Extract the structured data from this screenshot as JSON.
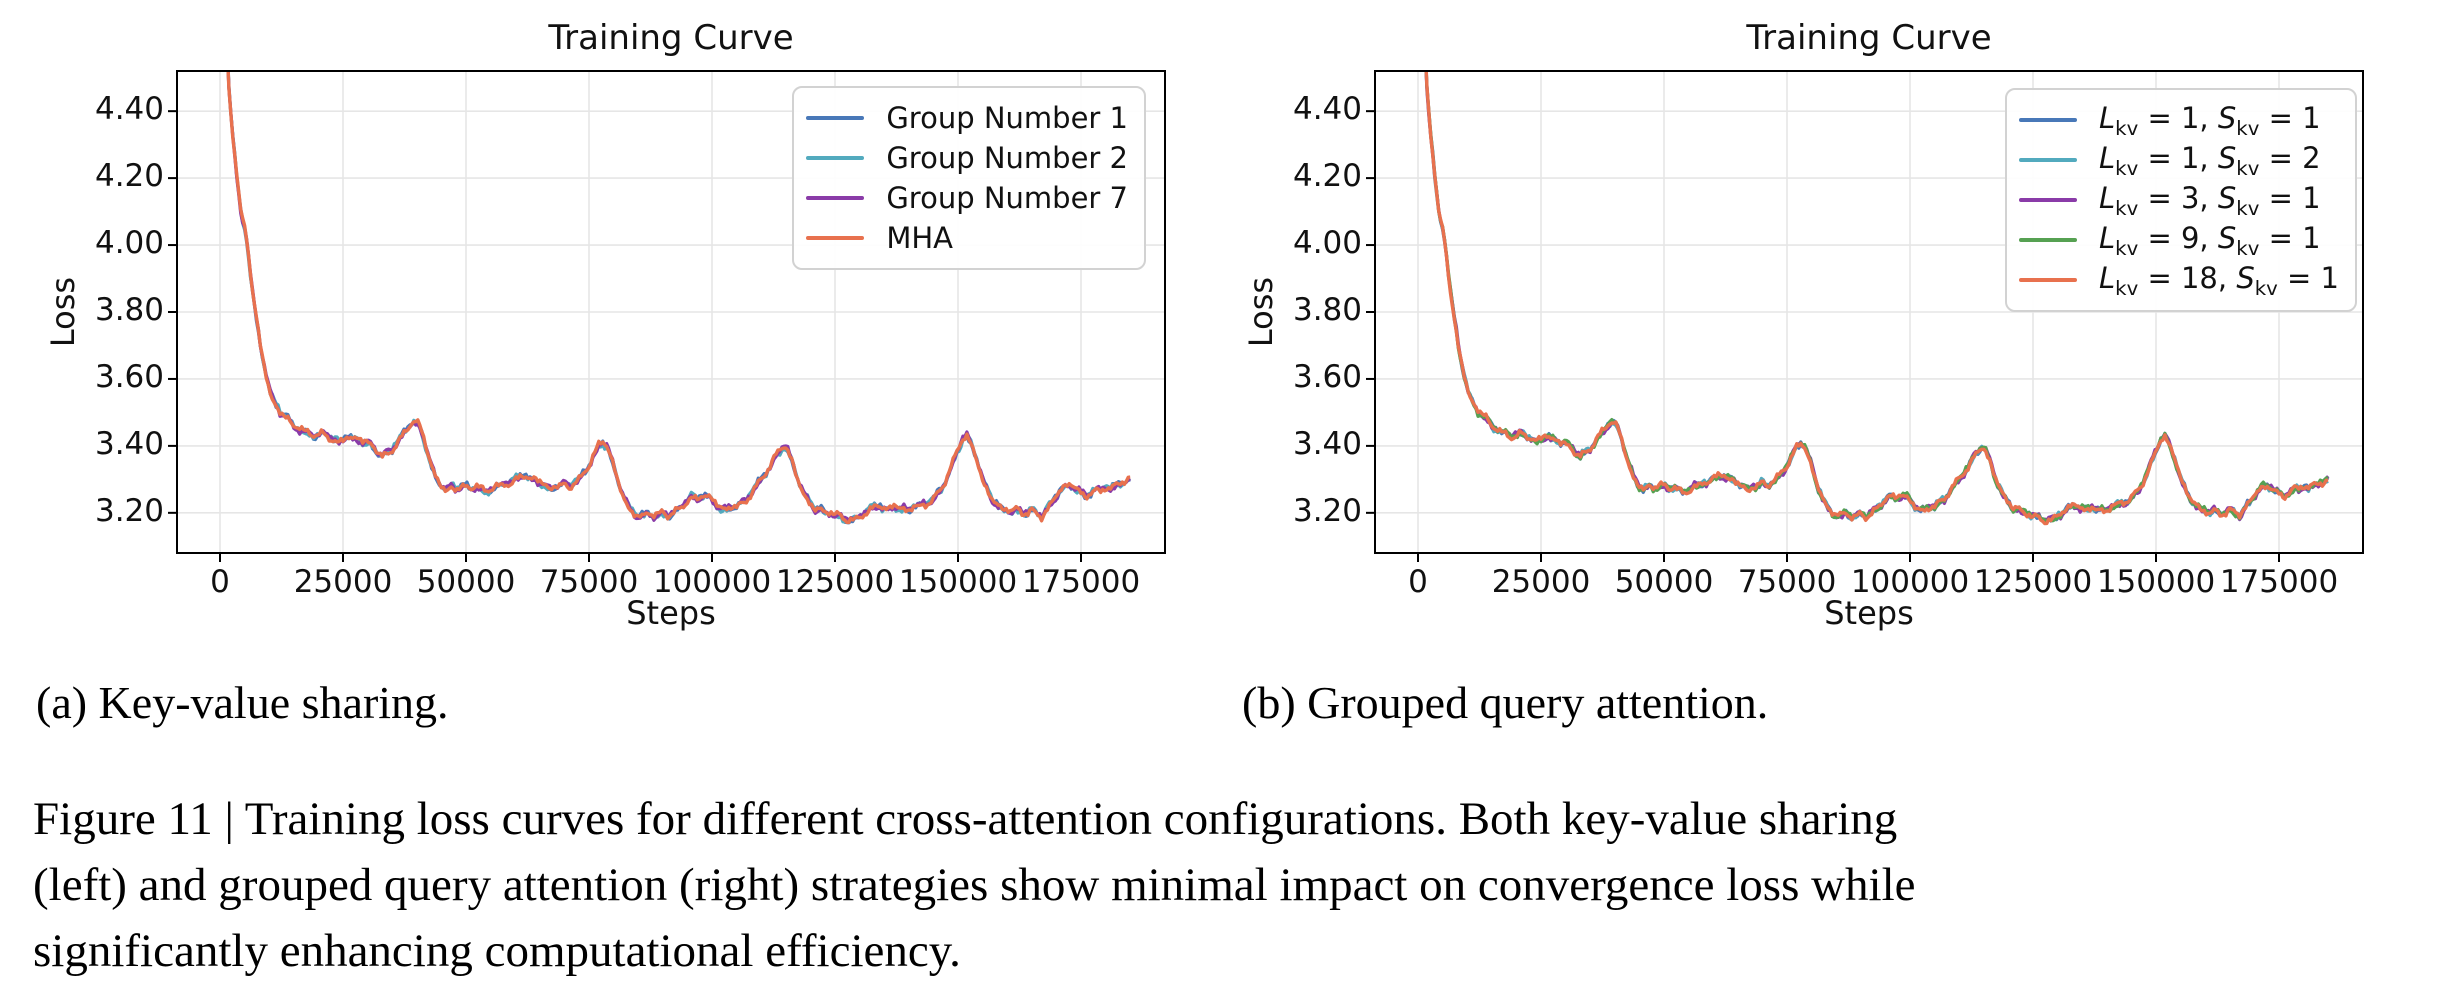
{
  "figure": {
    "subcaption_a": "(a) Key-value sharing.",
    "subcaption_b": "(b) Grouped query attention.",
    "caption_lines": [
      "Figure 11 | Training loss curves for different cross-attention configurations. Both key-value sharing",
      "(left) and grouped query attention (right) strategies show minimal impact on convergence loss while",
      "significantly enhancing computational efficiency."
    ]
  },
  "chart_data": {
    "type": "line",
    "note": "Two side-by-side training-loss line charts. Within each chart all series visually overlap along the same curve (differences are within line width). Shared approximate curve given in points as [step, loss].",
    "points": [
      [
        1000,
        4.82
      ],
      [
        1400,
        4.61
      ],
      [
        1800,
        4.47
      ],
      [
        2200,
        4.4
      ],
      [
        2600,
        4.33
      ],
      [
        3000,
        4.27
      ],
      [
        3400,
        4.21
      ],
      [
        3800,
        4.15
      ],
      [
        4200,
        4.1
      ],
      [
        4600,
        4.07
      ],
      [
        5000,
        4.05
      ],
      [
        5400,
        4.02
      ],
      [
        5800,
        3.97
      ],
      [
        6300,
        3.9
      ],
      [
        6900,
        3.83
      ],
      [
        7500,
        3.77
      ],
      [
        8100,
        3.71
      ],
      [
        8700,
        3.66
      ],
      [
        9300,
        3.62
      ],
      [
        10000,
        3.57
      ],
      [
        10700,
        3.54
      ],
      [
        11500,
        3.52
      ],
      [
        12300,
        3.5
      ],
      [
        13100,
        3.49
      ],
      [
        14000,
        3.48
      ],
      [
        15000,
        3.46
      ],
      [
        16000,
        3.45
      ],
      [
        17000,
        3.44
      ],
      [
        18000,
        3.44
      ],
      [
        19000,
        3.43
      ],
      [
        20000,
        3.43
      ],
      [
        21000,
        3.44
      ],
      [
        22000,
        3.43
      ],
      [
        23000,
        3.42
      ],
      [
        24000,
        3.41
      ],
      [
        25000,
        3.42
      ],
      [
        26000,
        3.43
      ],
      [
        27000,
        3.42
      ],
      [
        28000,
        3.42
      ],
      [
        29000,
        3.41
      ],
      [
        30000,
        3.41
      ],
      [
        31000,
        3.4
      ],
      [
        32000,
        3.38
      ],
      [
        33000,
        3.37
      ],
      [
        34000,
        3.38
      ],
      [
        35000,
        3.39
      ],
      [
        36000,
        3.41
      ],
      [
        37000,
        3.43
      ],
      [
        38000,
        3.45
      ],
      [
        39000,
        3.47
      ],
      [
        40000,
        3.47
      ],
      [
        41000,
        3.44
      ],
      [
        42000,
        3.39
      ],
      [
        43000,
        3.34
      ],
      [
        44000,
        3.3
      ],
      [
        45000,
        3.28
      ],
      [
        46000,
        3.27
      ],
      [
        47000,
        3.28
      ],
      [
        48000,
        3.27
      ],
      [
        49000,
        3.28
      ],
      [
        50000,
        3.28
      ],
      [
        51000,
        3.27
      ],
      [
        52000,
        3.28
      ],
      [
        53000,
        3.27
      ],
      [
        54000,
        3.26
      ],
      [
        55000,
        3.27
      ],
      [
        56000,
        3.28
      ],
      [
        57000,
        3.28
      ],
      [
        58000,
        3.29
      ],
      [
        59000,
        3.29
      ],
      [
        60000,
        3.3
      ],
      [
        61000,
        3.31
      ],
      [
        62000,
        3.31
      ],
      [
        63000,
        3.3
      ],
      [
        64000,
        3.3
      ],
      [
        65000,
        3.29
      ],
      [
        66000,
        3.28
      ],
      [
        67000,
        3.27
      ],
      [
        68000,
        3.28
      ],
      [
        69000,
        3.28
      ],
      [
        70000,
        3.29
      ],
      [
        71000,
        3.28
      ],
      [
        72000,
        3.29
      ],
      [
        73000,
        3.3
      ],
      [
        74000,
        3.32
      ],
      [
        75000,
        3.34
      ],
      [
        76000,
        3.37
      ],
      [
        77000,
        3.4
      ],
      [
        77800,
        3.41
      ],
      [
        78600,
        3.4
      ],
      [
        79400,
        3.37
      ],
      [
        80200,
        3.33
      ],
      [
        81000,
        3.29
      ],
      [
        82000,
        3.25
      ],
      [
        83000,
        3.22
      ],
      [
        84000,
        3.2
      ],
      [
        85000,
        3.19
      ],
      [
        86000,
        3.19
      ],
      [
        87000,
        3.2
      ],
      [
        88000,
        3.19
      ],
      [
        89000,
        3.19
      ],
      [
        90000,
        3.2
      ],
      [
        91000,
        3.19
      ],
      [
        92000,
        3.2
      ],
      [
        93000,
        3.21
      ],
      [
        94000,
        3.22
      ],
      [
        95000,
        3.24
      ],
      [
        96000,
        3.25
      ],
      [
        97000,
        3.24
      ],
      [
        98000,
        3.25
      ],
      [
        99000,
        3.25
      ],
      [
        100000,
        3.24
      ],
      [
        101000,
        3.22
      ],
      [
        102000,
        3.21
      ],
      [
        103000,
        3.21
      ],
      [
        104000,
        3.22
      ],
      [
        105000,
        3.22
      ],
      [
        106000,
        3.23
      ],
      [
        107000,
        3.24
      ],
      [
        108000,
        3.26
      ],
      [
        109000,
        3.28
      ],
      [
        110000,
        3.3
      ],
      [
        111000,
        3.32
      ],
      [
        112000,
        3.34
      ],
      [
        113000,
        3.37
      ],
      [
        114000,
        3.39
      ],
      [
        114800,
        3.4
      ],
      [
        115600,
        3.38
      ],
      [
        116400,
        3.35
      ],
      [
        117200,
        3.31
      ],
      [
        118000,
        3.28
      ],
      [
        119000,
        3.25
      ],
      [
        120000,
        3.23
      ],
      [
        121000,
        3.21
      ],
      [
        122000,
        3.21
      ],
      [
        123000,
        3.2
      ],
      [
        124000,
        3.2
      ],
      [
        125000,
        3.19
      ],
      [
        126000,
        3.19
      ],
      [
        127000,
        3.18
      ],
      [
        128000,
        3.18
      ],
      [
        129000,
        3.18
      ],
      [
        130000,
        3.19
      ],
      [
        131000,
        3.2
      ],
      [
        132000,
        3.21
      ],
      [
        133000,
        3.22
      ],
      [
        134000,
        3.22
      ],
      [
        135000,
        3.21
      ],
      [
        136000,
        3.21
      ],
      [
        137000,
        3.22
      ],
      [
        138000,
        3.21
      ],
      [
        139000,
        3.21
      ],
      [
        140000,
        3.21
      ],
      [
        141000,
        3.22
      ],
      [
        142000,
        3.22
      ],
      [
        143000,
        3.23
      ],
      [
        144000,
        3.23
      ],
      [
        145000,
        3.24
      ],
      [
        146000,
        3.26
      ],
      [
        147000,
        3.28
      ],
      [
        148000,
        3.31
      ],
      [
        149000,
        3.35
      ],
      [
        150000,
        3.39
      ],
      [
        151000,
        3.42
      ],
      [
        151800,
        3.43
      ],
      [
        152600,
        3.41
      ],
      [
        153400,
        3.38
      ],
      [
        154200,
        3.34
      ],
      [
        155000,
        3.3
      ],
      [
        156000,
        3.27
      ],
      [
        157000,
        3.24
      ],
      [
        158000,
        3.22
      ],
      [
        159000,
        3.21
      ],
      [
        160000,
        3.21
      ],
      [
        161000,
        3.2
      ],
      [
        162000,
        3.21
      ],
      [
        163000,
        3.2
      ],
      [
        164000,
        3.2
      ],
      [
        165000,
        3.21
      ],
      [
        166000,
        3.2
      ],
      [
        167000,
        3.19
      ],
      [
        168000,
        3.21
      ],
      [
        169000,
        3.23
      ],
      [
        170000,
        3.25
      ],
      [
        171000,
        3.27
      ],
      [
        172000,
        3.28
      ],
      [
        173000,
        3.28
      ],
      [
        174000,
        3.27
      ],
      [
        175000,
        3.26
      ],
      [
        176000,
        3.25
      ],
      [
        177000,
        3.26
      ],
      [
        178000,
        3.27
      ],
      [
        179000,
        3.27
      ],
      [
        180000,
        3.28
      ],
      [
        181000,
        3.27
      ],
      [
        182000,
        3.28
      ],
      [
        183000,
        3.29
      ],
      [
        184000,
        3.29
      ],
      [
        185000,
        3.3
      ]
    ],
    "charts": [
      {
        "title": "Training Curve",
        "xlabel": "Steps",
        "ylabel": "Loss",
        "xlim": [
          -9000,
          192000
        ],
        "ylim": [
          3.08,
          4.52
        ],
        "x_ticks": [
          0,
          25000,
          50000,
          75000,
          100000,
          125000,
          150000,
          175000
        ],
        "x_tick_labels": [
          "0",
          "25000",
          "50000",
          "75000",
          "100000",
          "125000",
          "150000",
          "175000"
        ],
        "y_ticks": [
          3.2,
          3.4,
          3.6,
          3.8,
          4.0,
          4.2,
          4.4
        ],
        "y_tick_labels": [
          "3.20",
          "3.40",
          "3.60",
          "3.80",
          "4.00",
          "4.20",
          "4.40"
        ],
        "grid": true,
        "legend_position": "upper right",
        "series": [
          {
            "label": "Group Number 1",
            "color": "#4878b8"
          },
          {
            "label": "Group Number 2",
            "color": "#52aabe"
          },
          {
            "label": "Group Number 7",
            "color": "#8a3ba8"
          },
          {
            "label": "MHA",
            "color": "#e8714e"
          }
        ]
      },
      {
        "title": "Training Curve",
        "xlabel": "Steps",
        "ylabel": "Loss",
        "xlim": [
          -9000,
          192000
        ],
        "ylim": [
          3.08,
          4.52
        ],
        "x_ticks": [
          0,
          25000,
          50000,
          75000,
          100000,
          125000,
          150000,
          175000
        ],
        "x_tick_labels": [
          "0",
          "25000",
          "50000",
          "75000",
          "100000",
          "125000",
          "150000",
          "175000"
        ],
        "y_ticks": [
          3.2,
          3.4,
          3.6,
          3.8,
          4.0,
          4.2,
          4.4
        ],
        "y_tick_labels": [
          "3.20",
          "3.40",
          "3.60",
          "3.80",
          "4.00",
          "4.20",
          "4.40"
        ],
        "grid": true,
        "legend_position": "upper right",
        "series": [
          {
            "label": "L_{kv} = 1, S_{kv} = 1",
            "color": "#4878b8"
          },
          {
            "label": "L_{kv} = 1, S_{kv} = 2",
            "color": "#52aabe"
          },
          {
            "label": "L_{kv} = 3, S_{kv} = 1",
            "color": "#8a3ba8"
          },
          {
            "label": "L_{kv} = 9, S_{kv} = 1",
            "color": "#56a152"
          },
          {
            "label": "L_{kv} = 18, S_{kv} = 1",
            "color": "#e8714e"
          }
        ]
      }
    ]
  }
}
